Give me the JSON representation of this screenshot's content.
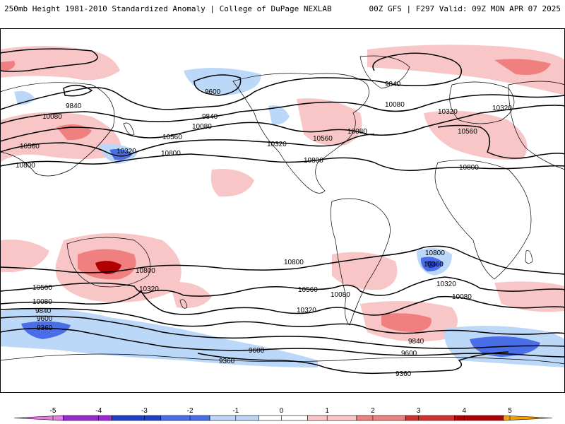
{
  "header": {
    "left": "250mb Height 1981-2010 Standardized Anomaly | College of DuPage NEXLAB",
    "right": "00Z GFS | F297 Valid: 09Z MON APR 07 2025"
  },
  "contour_labels": [
    "9600",
    "9840",
    "10080",
    "10560",
    "10320",
    "10800",
    "9840",
    "10080",
    "10320",
    "10560",
    "10800",
    "9840",
    "10080",
    "10320",
    "10560",
    "10800",
    "10800",
    "10560",
    "10320",
    "10080",
    "9840",
    "9600",
    "9360",
    "10800",
    "10560",
    "10320",
    "10080",
    "9840",
    "9600",
    "9360",
    "10800",
    "10560",
    "10080",
    "10320",
    "10800",
    "10360",
    "10320",
    "10080",
    "9840",
    "9600",
    "9360"
  ],
  "colorbar": {
    "ticks": [
      "-5",
      "-4",
      "-3",
      "-2",
      "-1",
      "0",
      "1",
      "2",
      "3",
      "4",
      "5"
    ],
    "colors": [
      "#e879e8",
      "#9a2ad0",
      "#1f3fc8",
      "#4a6ee8",
      "#bcd8f8",
      "#ffffff",
      "#f8c6c6",
      "#f08080",
      "#d03030",
      "#b00000",
      "#f4a000"
    ]
  },
  "colors": {
    "land_outline": "#000000",
    "contour": "#000000"
  }
}
